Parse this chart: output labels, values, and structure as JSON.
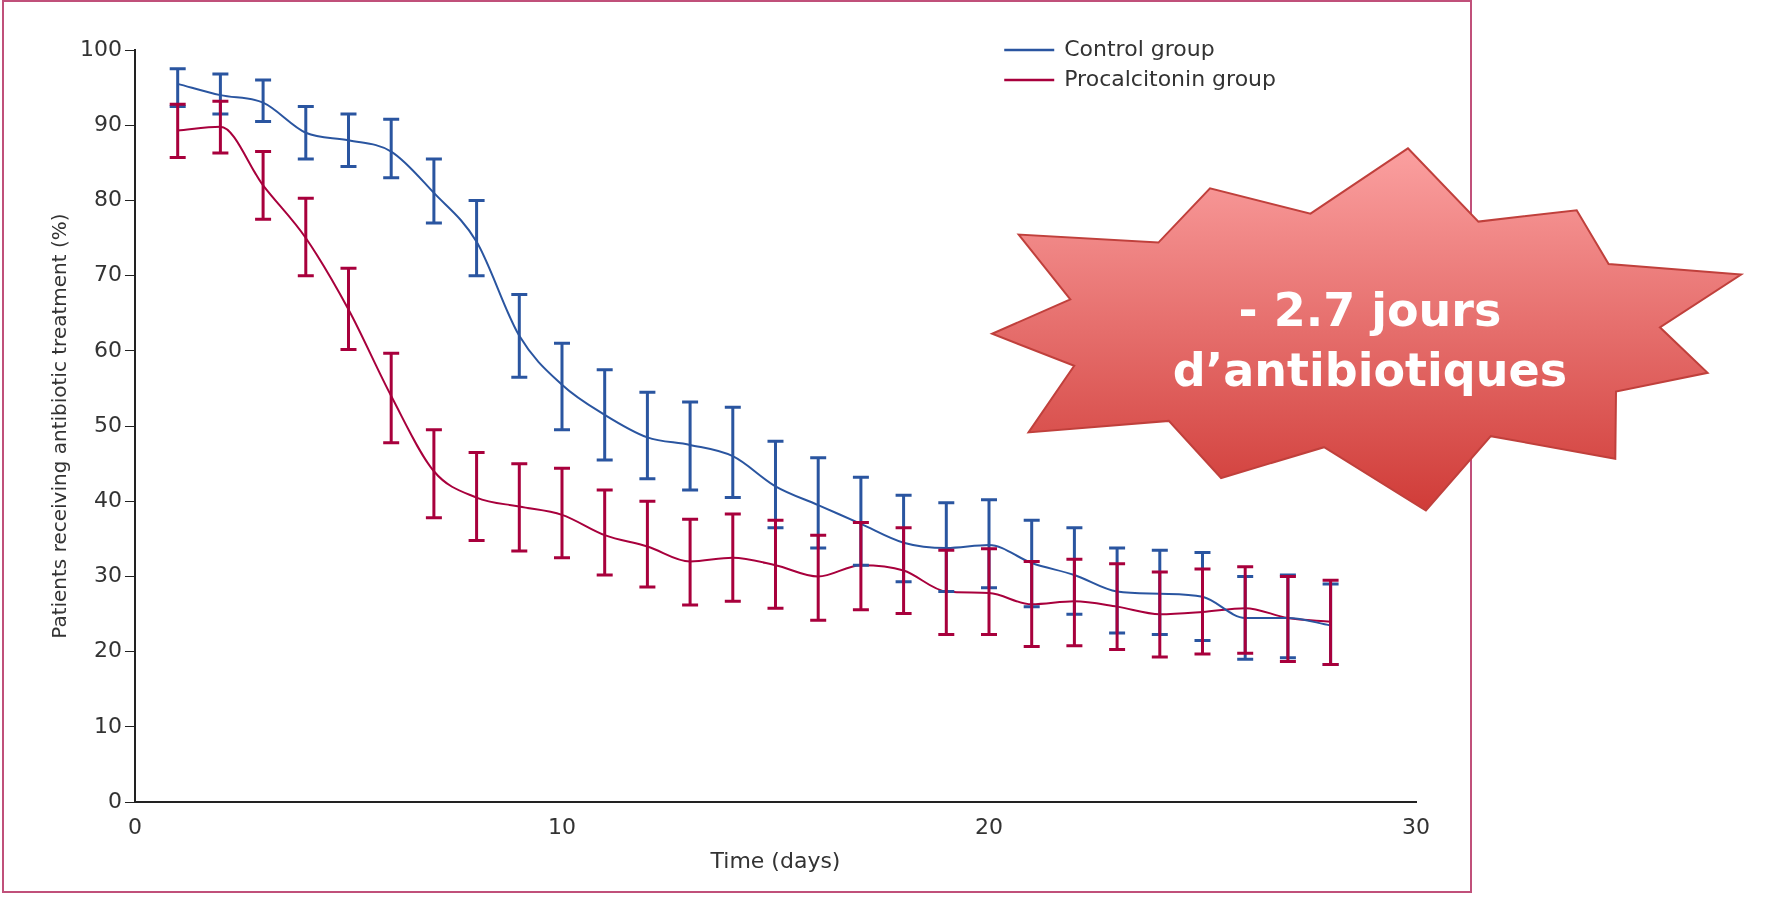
{
  "chart_data": {
    "type": "line",
    "xlabel": "Time (days)",
    "ylabel": "Patients receiving antibiotic treatment (%)",
    "xlim": [
      0,
      30
    ],
    "xticks": [
      0,
      10,
      20,
      30
    ],
    "ylim": [
      0,
      100
    ],
    "yticks": [
      0,
      10,
      20,
      30,
      40,
      50,
      60,
      70,
      80,
      90,
      100
    ],
    "x": [
      1,
      2,
      3,
      4,
      5,
      6,
      7,
      8,
      9,
      10,
      11,
      12,
      13,
      14,
      15,
      16,
      17,
      18,
      19,
      20,
      21,
      22,
      23,
      24,
      25,
      26,
      27,
      28
    ],
    "legend": "top right",
    "grid": false,
    "marker": "none",
    "line_style": "solid",
    "annotations": [
      "- 2.7 jours d’antibiotiques"
    ],
    "series": [
      {
        "name": "Control group",
        "color": "#2a55a0",
        "values": [
          95.5,
          94,
          93,
          89,
          88,
          86.5,
          81,
          74.5,
          62,
          55.5,
          51.5,
          48.5,
          47.5,
          46,
          42,
          39.5,
          37,
          34.5,
          33.8,
          34.2,
          31.8,
          30.2,
          28,
          27.7,
          27.3,
          24.5,
          24.5,
          23.5
        ],
        "errors": [
          [
            92.5,
            97.5
          ],
          [
            91.5,
            96.8
          ],
          [
            90.5,
            96
          ],
          [
            85.5,
            92.5
          ],
          [
            84.5,
            91.5
          ],
          [
            83,
            90.8
          ],
          [
            77,
            85.5
          ],
          [
            70,
            80
          ],
          [
            56.5,
            67.5
          ],
          [
            49.5,
            61
          ],
          [
            45.5,
            57.5
          ],
          [
            43,
            54.5
          ],
          [
            41.5,
            53.2
          ],
          [
            40.5,
            52.5
          ],
          [
            36.5,
            48
          ],
          [
            33.8,
            45.8
          ],
          [
            31.5,
            43.2
          ],
          [
            29.3,
            40.8
          ],
          [
            28,
            39.8
          ],
          [
            28.5,
            40.2
          ],
          [
            26,
            37.5
          ],
          [
            25,
            36.5
          ],
          [
            22.5,
            33.8
          ],
          [
            22.3,
            33.5
          ],
          [
            21.5,
            33.2
          ],
          [
            19,
            30
          ],
          [
            19.2,
            30.2
          ],
          [
            18.3,
            29
          ]
        ]
      },
      {
        "name": "Procalcitonin group",
        "color": "#a8003c",
        "values": [
          89.3,
          89.8,
          82,
          75,
          65.5,
          54,
          44,
          40.5,
          39.3,
          38.2,
          35.5,
          34,
          32,
          32.5,
          31.5,
          30,
          31.5,
          30.8,
          28,
          27.8,
          26.3,
          26.7,
          26,
          25,
          25.3,
          25.8,
          24.5,
          24
        ],
        "errors": [
          [
            85.7,
            92.8
          ],
          [
            86.3,
            93.2
          ],
          [
            77.5,
            86.5
          ],
          [
            70,
            80.3
          ],
          [
            60.2,
            71
          ],
          [
            47.8,
            59.7
          ],
          [
            37.8,
            49.5
          ],
          [
            34.8,
            46.5
          ],
          [
            33.4,
            45
          ],
          [
            32.5,
            44.4
          ],
          [
            30.2,
            41.5
          ],
          [
            28.6,
            40
          ],
          [
            26.2,
            37.6
          ],
          [
            26.7,
            38.3
          ],
          [
            25.8,
            37.5
          ],
          [
            24.2,
            35.5
          ],
          [
            25.6,
            37.2
          ],
          [
            25.1,
            36.5
          ],
          [
            22.3,
            33.5
          ],
          [
            22.3,
            33.7
          ],
          [
            20.7,
            32
          ],
          [
            20.8,
            32.3
          ],
          [
            20.3,
            31.7
          ],
          [
            19.3,
            30.6
          ],
          [
            19.7,
            31
          ],
          [
            19.8,
            31.3
          ],
          [
            18.7,
            30
          ],
          [
            18.3,
            29.5
          ]
        ]
      }
    ]
  }
}
